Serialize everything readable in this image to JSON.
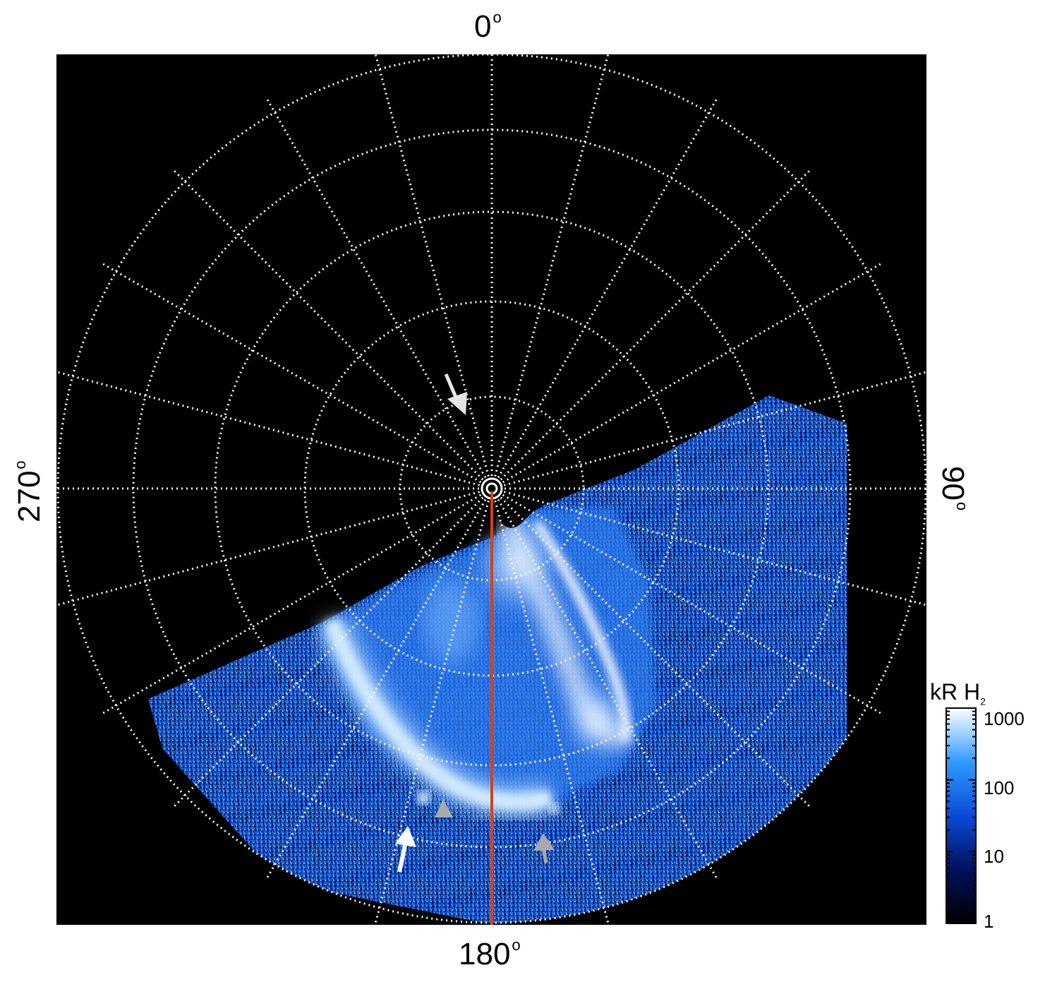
{
  "labels": {
    "top": "0",
    "right": "90",
    "bottom": "180",
    "left": "270",
    "degree_symbol": "o"
  },
  "colorbar": {
    "title": "kR H",
    "title_subscript": "2",
    "ticks": [
      "1000",
      "100",
      "10",
      "1"
    ],
    "colors": [
      "#000000",
      "#00105a",
      "#0a4bd8",
      "#2f9bff",
      "#ffffff"
    ]
  },
  "image": {
    "background": "#000000",
    "grid_color": "#ffffff",
    "meridian_color": "#d0421e",
    "arrow_colors": [
      "#ffffff",
      "#bdbdbd"
    ]
  }
}
